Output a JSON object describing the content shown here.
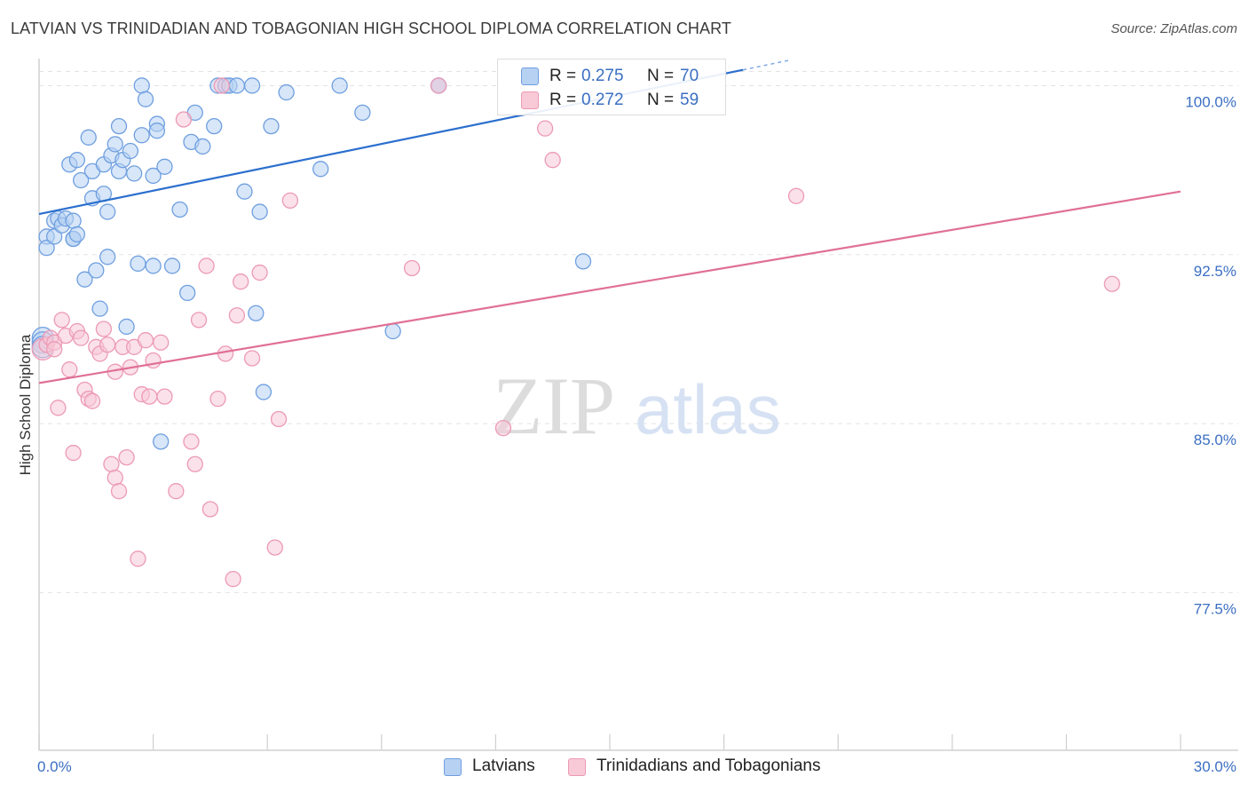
{
  "title": "LATVIAN VS TRINIDADIAN AND TOBAGONIAN HIGH SCHOOL DIPLOMA CORRELATION CHART",
  "source": "Source: ZipAtlas.com",
  "watermark": {
    "zip": "ZIP",
    "atlas": "atlas"
  },
  "legend_top": [
    {
      "r_label": "R =",
      "r_value": "0.275",
      "n_label": "N =",
      "n_value": "70",
      "color": "#7aa8e6"
    },
    {
      "r_label": "R =",
      "r_value": "0.272",
      "n_label": "N =",
      "n_value": "59",
      "color": "#f1a5be"
    }
  ],
  "legend_bottom": [
    "Latvians",
    "Trinidadians and Tobagonians"
  ],
  "colors": {
    "latvians_fill": "#b7d1f3",
    "latvians_stroke": "#6f9fe0",
    "latvians_line": "#2b6fce",
    "trini_fill": "#f8c9d7",
    "trini_stroke": "#ec9ab5",
    "trini_line": "#e07096",
    "tick_label": "#3b6fc2",
    "grid": "#e3e3e3"
  },
  "chart_data": {
    "type": "scatter",
    "ylabel": "High School Diploma",
    "x_tick_labels": [
      "0.0%",
      "30.0%"
    ],
    "y_tick_labels": [
      "100.0%",
      "92.5%",
      "85.0%",
      "77.5%"
    ],
    "y_ticks": [
      100.0,
      92.5,
      85.0,
      77.5
    ],
    "xlim": [
      0.0,
      30.0
    ],
    "ylim": [
      70.5,
      101.2
    ],
    "grid": true,
    "series": [
      {
        "name": "Latvians",
        "r": 0.275,
        "n": 70,
        "trend": {
          "x0": 0.0,
          "y0": 94.3,
          "x1": 18.5,
          "y1": 100.7
        },
        "points": [
          [
            0.2,
            93.3
          ],
          [
            0.2,
            92.8
          ],
          [
            0.4,
            93.3
          ],
          [
            0.4,
            94.0
          ],
          [
            0.5,
            94.1
          ],
          [
            0.6,
            93.8
          ],
          [
            0.7,
            94.1
          ],
          [
            0.9,
            93.2
          ],
          [
            0.9,
            93.2
          ],
          [
            0.9,
            94.0
          ],
          [
            1.0,
            93.4
          ],
          [
            0.8,
            96.5
          ],
          [
            1.0,
            96.7
          ],
          [
            1.1,
            95.8
          ],
          [
            1.2,
            91.4
          ],
          [
            1.3,
            97.7
          ],
          [
            1.4,
            95.0
          ],
          [
            1.4,
            96.2
          ],
          [
            1.5,
            91.8
          ],
          [
            1.6,
            90.1
          ],
          [
            1.7,
            95.2
          ],
          [
            1.7,
            96.5
          ],
          [
            1.8,
            92.4
          ],
          [
            1.8,
            94.4
          ],
          [
            1.9,
            96.9
          ],
          [
            2.0,
            97.4
          ],
          [
            2.1,
            96.2
          ],
          [
            2.1,
            98.2
          ],
          [
            2.2,
            96.7
          ],
          [
            2.3,
            89.3
          ],
          [
            2.4,
            97.1
          ],
          [
            2.5,
            96.1
          ],
          [
            2.6,
            92.1
          ],
          [
            2.7,
            100.0
          ],
          [
            2.7,
            97.8
          ],
          [
            2.8,
            99.4
          ],
          [
            3.0,
            96.0
          ],
          [
            3.0,
            92.0
          ],
          [
            3.1,
            98.3
          ],
          [
            3.1,
            98.0
          ],
          [
            3.2,
            84.2
          ],
          [
            3.3,
            96.4
          ],
          [
            3.5,
            92.0
          ],
          [
            3.7,
            94.5
          ],
          [
            3.9,
            90.8
          ],
          [
            4.0,
            97.5
          ],
          [
            4.1,
            98.8
          ],
          [
            4.3,
            97.3
          ],
          [
            4.6,
            98.2
          ],
          [
            4.7,
            100.0
          ],
          [
            4.9,
            100.0
          ],
          [
            5.0,
            100.0
          ],
          [
            5.2,
            100.0
          ],
          [
            5.4,
            95.3
          ],
          [
            5.6,
            100.0
          ],
          [
            5.7,
            89.9
          ],
          [
            5.8,
            94.4
          ],
          [
            5.9,
            86.4
          ],
          [
            6.1,
            98.2
          ],
          [
            6.5,
            99.7
          ],
          [
            7.4,
            96.3
          ],
          [
            7.9,
            100.0
          ],
          [
            8.5,
            98.8
          ],
          [
            9.3,
            89.1
          ],
          [
            10.5,
            100.0
          ],
          [
            10.5,
            100.0
          ],
          [
            14.3,
            92.2
          ],
          [
            0.1,
            88.8
          ],
          [
            0.1,
            88.6
          ],
          [
            0.1,
            88.4
          ]
        ]
      },
      {
        "name": "Trinidadians and Tobagonians",
        "r": 0.272,
        "n": 59,
        "trend": {
          "x0": 0.0,
          "y0": 86.8,
          "x1": 30.0,
          "y1": 95.3
        },
        "points": [
          [
            0.1,
            88.3
          ],
          [
            0.2,
            88.5
          ],
          [
            0.3,
            88.8
          ],
          [
            0.4,
            88.6
          ],
          [
            0.4,
            88.3
          ],
          [
            0.5,
            85.7
          ],
          [
            0.6,
            89.6
          ],
          [
            0.7,
            88.9
          ],
          [
            0.8,
            87.4
          ],
          [
            0.9,
            83.7
          ],
          [
            1.0,
            89.1
          ],
          [
            1.1,
            88.8
          ],
          [
            1.2,
            86.5
          ],
          [
            1.3,
            86.1
          ],
          [
            1.4,
            86.0
          ],
          [
            1.5,
            88.4
          ],
          [
            1.6,
            88.1
          ],
          [
            1.7,
            89.2
          ],
          [
            1.8,
            88.5
          ],
          [
            1.9,
            83.2
          ],
          [
            2.0,
            87.3
          ],
          [
            2.0,
            82.6
          ],
          [
            2.1,
            82.0
          ],
          [
            2.2,
            88.4
          ],
          [
            2.3,
            83.5
          ],
          [
            2.4,
            87.5
          ],
          [
            2.5,
            88.4
          ],
          [
            2.6,
            79.0
          ],
          [
            2.7,
            86.3
          ],
          [
            2.8,
            88.7
          ],
          [
            2.9,
            86.2
          ],
          [
            3.0,
            87.8
          ],
          [
            3.2,
            88.6
          ],
          [
            3.3,
            86.2
          ],
          [
            3.6,
            82.0
          ],
          [
            3.8,
            98.5
          ],
          [
            4.0,
            84.2
          ],
          [
            4.1,
            83.2
          ],
          [
            4.2,
            89.6
          ],
          [
            4.4,
            92.0
          ],
          [
            4.5,
            81.2
          ],
          [
            4.7,
            86.1
          ],
          [
            4.8,
            100.0
          ],
          [
            4.9,
            88.1
          ],
          [
            5.1,
            78.1
          ],
          [
            5.2,
            89.8
          ],
          [
            5.3,
            91.3
          ],
          [
            5.6,
            87.9
          ],
          [
            5.8,
            91.7
          ],
          [
            6.2,
            79.5
          ],
          [
            6.3,
            85.2
          ],
          [
            6.6,
            94.9
          ],
          [
            9.8,
            91.9
          ],
          [
            10.5,
            100.0
          ],
          [
            12.2,
            84.8
          ],
          [
            13.3,
            98.1
          ],
          [
            13.5,
            96.7
          ],
          [
            19.9,
            95.1
          ],
          [
            28.2,
            91.2
          ]
        ]
      }
    ]
  }
}
